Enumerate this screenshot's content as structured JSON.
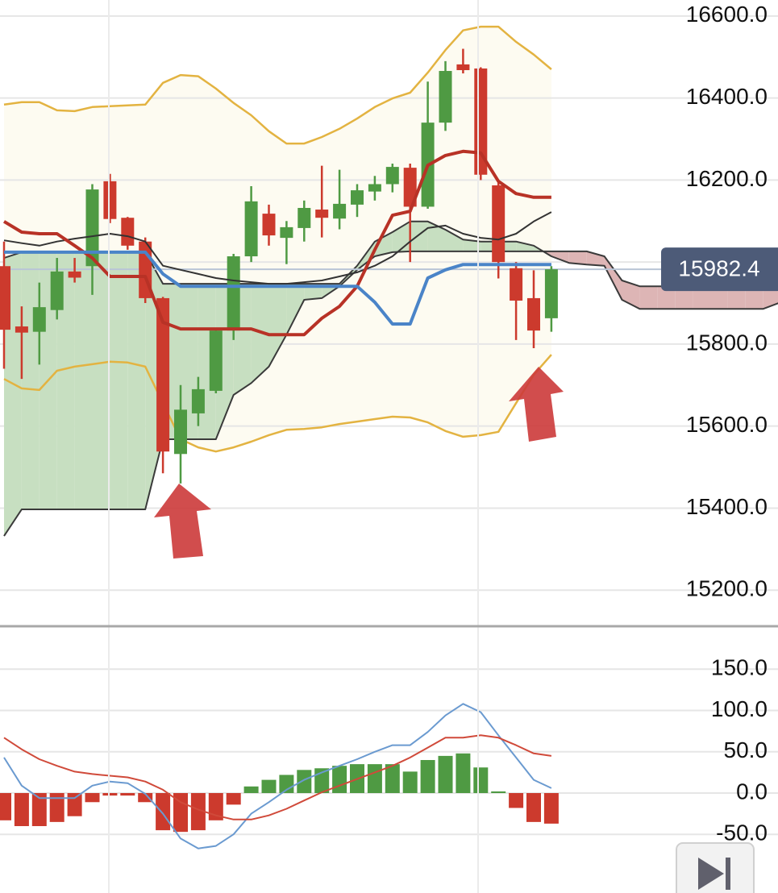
{
  "chart_data": [
    {
      "type": "candlestick",
      "categories": [
        null,
        null,
        null,
        null,
        null,
        null,
        null,
        null,
        null,
        null,
        null,
        null,
        null,
        null,
        null,
        null,
        null,
        null,
        null,
        null,
        null,
        null,
        null,
        null,
        null,
        null,
        null,
        null,
        null,
        null,
        null,
        null,
        null,
        null,
        null,
        null,
        null,
        null,
        null,
        null,
        null,
        null,
        null,
        null,
        null
      ],
      "open": [
        15990,
        15843,
        15830,
        15883,
        15977,
        15990,
        16197,
        16108,
        16050,
        15912,
        15532,
        15631,
        15686,
        15833,
        16014,
        16118,
        16059,
        16083,
        16128,
        16106,
        16140,
        16172,
        16190,
        16230,
        16135,
        16340,
        16482,
        16472,
        16187,
        15985,
        15912,
        15863,
        null,
        null,
        null,
        null,
        null,
        null,
        null,
        null,
        null,
        null,
        null,
        null,
        null
      ],
      "high": [
        16050,
        15892,
        15950,
        16010,
        16010,
        16190,
        16215,
        16110,
        16060,
        15915,
        15700,
        15720,
        15840,
        16020,
        16185,
        16140,
        16100,
        16150,
        16235,
        16225,
        16190,
        16210,
        16240,
        16240,
        16440,
        16490,
        16520,
        16475,
        16195,
        16000,
        15980,
        15990,
        null,
        null,
        null,
        null,
        null,
        null,
        null,
        null,
        null,
        null,
        null,
        null,
        null
      ],
      "low": [
        15740,
        15715,
        15750,
        15860,
        15950,
        15920,
        16095,
        16030,
        15900,
        15485,
        15460,
        15600,
        15680,
        15810,
        16000,
        16040,
        15995,
        16050,
        16060,
        16080,
        16110,
        16150,
        16170,
        16000,
        16130,
        16320,
        16460,
        16200,
        15960,
        15810,
        15790,
        15830,
        null,
        null,
        null,
        null,
        null,
        null,
        null,
        null,
        null,
        null,
        null,
        null,
        null
      ],
      "close": [
        15835,
        15828,
        15890,
        15977,
        15962,
        16177,
        16105,
        16040,
        15912,
        15538,
        15640,
        15690,
        15833,
        16014,
        16148,
        16065,
        16085,
        16132,
        16108,
        16142,
        16175,
        16190,
        16232,
        16135,
        16340,
        16466,
        16468,
        16213,
        16000,
        15906,
        15833,
        15982.4,
        null,
        null,
        null,
        null,
        null,
        null,
        null,
        null,
        null,
        null,
        null,
        null,
        null
      ],
      "up_color": "#4f9a43",
      "down_color": "#cc3a2d",
      "bands": {
        "upper": [
          16384,
          16390,
          16390,
          16370,
          16368,
          16378,
          16380,
          16382,
          16384,
          16437,
          16456,
          16453,
          16423,
          16388,
          16358,
          16319,
          16289,
          16289,
          16305,
          16325,
          16350,
          16378,
          16399,
          16413,
          16462,
          16517,
          16565,
          16574,
          16574,
          16537,
          16506,
          16470,
          null,
          null,
          null,
          null,
          null,
          null,
          null,
          null,
          null,
          null,
          null,
          null,
          null
        ],
        "lower": [
          15715,
          15692,
          15688,
          15735,
          15745,
          15751,
          15757,
          15755,
          15745,
          15656,
          15568,
          15548,
          15538,
          15548,
          15562,
          15578,
          15591,
          15593,
          15597,
          15605,
          15611,
          15617,
          15623,
          15621,
          15609,
          15588,
          15574,
          15578,
          15586,
          15656,
          15725,
          15774,
          null,
          null,
          null,
          null,
          null,
          null,
          null,
          null,
          null,
          null,
          null,
          null,
          null
        ],
        "color": "#e3b341",
        "fill": "#fdfbf1"
      },
      "cloud": {
        "span_a": [
          16010,
          16024,
          16024,
          16024,
          16024,
          16024,
          16024,
          16024,
          16024,
          15947,
          15947,
          15947,
          15947,
          15947,
          15947,
          15947,
          15947,
          15947,
          15947,
          15947,
          15991,
          16050,
          16073,
          16099,
          16099,
          16079,
          16055,
          16050,
          16050,
          16050,
          16040,
          16014,
          15998,
          15994,
          15991,
          15908,
          15886,
          15886,
          15886,
          15886,
          15886,
          15886,
          15886,
          15886,
          15902
        ],
        "span_b": [
          15332,
          15397,
          15397,
          15397,
          15397,
          15397,
          15397,
          15397,
          15397,
          15568,
          15568,
          15568,
          15568,
          15676,
          15705,
          15745,
          15823,
          15908,
          15912,
          15941,
          15981,
          16014,
          16024,
          16026,
          16026,
          16026,
          16026,
          16026,
          16026,
          16026,
          16026,
          16026,
          16026,
          16026,
          16014,
          15955,
          15941,
          15941,
          15941,
          15941,
          15941,
          15941,
          15941,
          15941,
          15941
        ],
        "line_color": "#3a3a3a",
        "up_fill": "#c7dfc1",
        "down_fill": "#ddb5b5"
      },
      "lines": [
        {
          "color": "#333333",
          "width": 2,
          "values": [
            16053,
            16046,
            16040,
            16050,
            16057,
            16063,
            16069,
            16063,
            16050,
            15991,
            15981,
            15971,
            15961,
            15955,
            15951,
            15947,
            15947,
            15951,
            15955,
            15965,
            15975,
            15991,
            16014,
            16050,
            16083,
            16089,
            16069,
            16059,
            16055,
            16069,
            16099,
            16122,
            null,
            null,
            null,
            null,
            null,
            null,
            null,
            null,
            null,
            null,
            null,
            null,
            null
          ]
        },
        {
          "color": "#b83226",
          "width": 4,
          "values": [
            16099,
            16073,
            16069,
            16069,
            16040,
            16010,
            15965,
            15965,
            15965,
            15853,
            15837,
            15837,
            15837,
            15837,
            15837,
            15823,
            15823,
            15823,
            15863,
            15892,
            15941,
            16030,
            16114,
            16124,
            16236,
            16260,
            16270,
            16266,
            16197,
            16167,
            16158,
            16158,
            null,
            null,
            null,
            null,
            null,
            null,
            null,
            null,
            null,
            null,
            null,
            null,
            null
          ]
        },
        {
          "color": "#4a84c8",
          "width": 4,
          "values": [
            16024,
            16024,
            16024,
            16024,
            16024,
            16024,
            16024,
            16024,
            16024,
            15971,
            15941,
            15941,
            15941,
            15941,
            15941,
            15941,
            15941,
            15941,
            15941,
            15941,
            15941,
            15902,
            15849,
            15849,
            15961,
            15981,
            15994,
            15994,
            15994,
            15994,
            15994,
            15994,
            null,
            null,
            null,
            null,
            null,
            null,
            null,
            null,
            null,
            null,
            null,
            null,
            null
          ]
        }
      ],
      "last_price": 15982.4,
      "last_price_color": "#4d5b78",
      "ylim": [
        15112,
        16639
      ],
      "yticks": [
        {
          "value": 15200,
          "label": "15200.0"
        },
        {
          "value": 15400,
          "label": "15400.0"
        },
        {
          "value": 15600,
          "label": "15600.0"
        },
        {
          "value": 15800,
          "label": "15800.0"
        },
        {
          "value": 16000,
          "label": "16000.0"
        },
        {
          "value": 16200,
          "label": "16200.0"
        },
        {
          "value": 16400,
          "label": "16400.0"
        },
        {
          "value": 16600,
          "label": "16600.0"
        }
      ],
      "grid": true
    },
    {
      "type": "macd",
      "categories": [
        null,
        null,
        null,
        null,
        null,
        null,
        null,
        null,
        null,
        null,
        null,
        null,
        null,
        null,
        null,
        null,
        null,
        null,
        null,
        null,
        null,
        null,
        null,
        null,
        null,
        null,
        null,
        null,
        null,
        null,
        null,
        null
      ],
      "histogram": [
        -33,
        -40,
        -40,
        -35,
        -28,
        -11,
        -3,
        -3,
        -11,
        -45,
        -47,
        -45,
        -33,
        -14,
        8,
        16,
        22,
        28,
        30,
        33,
        35,
        35,
        35,
        26,
        40,
        45,
        48,
        31,
        2,
        -18,
        -35,
        -37
      ],
      "up_color": "#4f9a43",
      "down_color": "#cc3a2d",
      "lines": [
        {
          "color": "#6a9ad0",
          "width": 2,
          "values": [
            43,
            9,
            -6,
            -6,
            -6,
            9,
            14,
            12,
            -1,
            -25,
            -55,
            -67,
            -64,
            -50,
            -25,
            -11,
            4,
            16,
            25,
            33,
            41,
            50,
            58,
            58,
            74,
            94,
            108,
            98,
            70,
            43,
            16,
            6
          ]
        },
        {
          "color": "#d04a3a",
          "width": 2,
          "values": [
            67,
            53,
            41,
            33,
            26,
            23,
            21,
            19,
            14,
            4,
            -11,
            -20,
            -27,
            -32,
            -32,
            -27,
            -19,
            -9,
            1,
            9,
            17,
            25,
            33,
            43,
            55,
            67,
            67,
            70,
            67,
            58,
            48,
            45
          ]
        }
      ],
      "ylim": [
        -121,
        202
      ],
      "yticks": [
        {
          "value": -50,
          "label": "-50.0"
        },
        {
          "value": 0,
          "label": "0.0"
        },
        {
          "value": 50,
          "label": "50.0"
        },
        {
          "value": 100,
          "label": "100.0"
        },
        {
          "value": 150,
          "label": "150.0"
        }
      ],
      "grid": true
    }
  ]
}
